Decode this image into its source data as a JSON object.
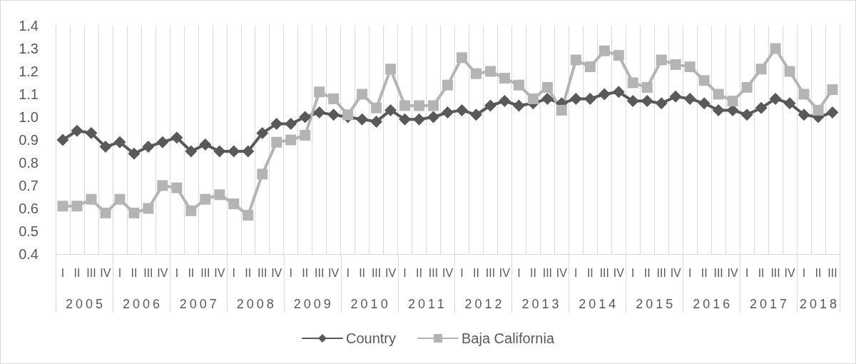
{
  "chart_data": {
    "type": "line",
    "categories": [
      "I",
      "II",
      "III",
      "IV",
      "I",
      "II",
      "III",
      "IV",
      "I",
      "II",
      "III",
      "IV",
      "I",
      "II",
      "III",
      "IV",
      "I",
      "II",
      "III",
      "IV",
      "I",
      "II",
      "III",
      "IV",
      "I",
      "II",
      "III",
      "IV",
      "I",
      "II",
      "III",
      "IV",
      "I",
      "II",
      "III",
      "IV",
      "I",
      "II",
      "III",
      "IV",
      "I",
      "II",
      "III",
      "IV",
      "I",
      "II",
      "III",
      "IV",
      "I",
      "II",
      "III",
      "IV",
      "I",
      "II",
      "III"
    ],
    "annotations": [
      "2005",
      "2006",
      "2007",
      "2008",
      "2009",
      "2010",
      "2011",
      "2012",
      "2013",
      "2014",
      "2015",
      "2016",
      "2017",
      "2018"
    ],
    "series": [
      {
        "name": "Country",
        "color": "#595959",
        "marker": "diamond",
        "values": [
          0.9,
          0.94,
          0.93,
          0.87,
          0.89,
          0.84,
          0.87,
          0.89,
          0.91,
          0.85,
          0.88,
          0.85,
          0.85,
          0.85,
          0.93,
          0.97,
          0.97,
          1.0,
          1.02,
          1.01,
          1.0,
          0.99,
          0.98,
          1.03,
          0.99,
          0.99,
          1.0,
          1.02,
          1.03,
          1.01,
          1.05,
          1.07,
          1.05,
          1.06,
          1.08,
          1.06,
          1.08,
          1.08,
          1.1,
          1.11,
          1.07,
          1.07,
          1.06,
          1.09,
          1.08,
          1.06,
          1.03,
          1.03,
          1.01,
          1.04,
          1.08,
          1.06,
          1.01,
          1.0,
          1.02
        ]
      },
      {
        "name": "Baja California",
        "color": "#b4b4b4",
        "marker": "square",
        "values": [
          0.61,
          0.61,
          0.64,
          0.58,
          0.64,
          0.58,
          0.6,
          0.7,
          0.69,
          0.59,
          0.64,
          0.66,
          0.62,
          0.57,
          0.75,
          0.89,
          0.9,
          0.92,
          1.11,
          1.08,
          1.01,
          1.1,
          1.04,
          1.21,
          1.05,
          1.05,
          1.05,
          1.14,
          1.26,
          1.19,
          1.2,
          1.17,
          1.14,
          1.08,
          1.13,
          1.03,
          1.25,
          1.22,
          1.29,
          1.27,
          1.15,
          1.13,
          1.25,
          1.23,
          1.22,
          1.16,
          1.1,
          1.07,
          1.13,
          1.21,
          1.3,
          1.2,
          1.1,
          1.03,
          1.12
        ]
      }
    ],
    "ylim": [
      0.4,
      1.4
    ],
    "yticks": [
      0.4,
      0.5,
      0.6,
      0.7,
      0.8,
      0.9,
      {
        "value": 1.0,
        "label": "1.0"
      },
      1.1,
      1.2,
      1.3,
      1.4
    ],
    "grid": "x",
    "legend": "bottom"
  }
}
